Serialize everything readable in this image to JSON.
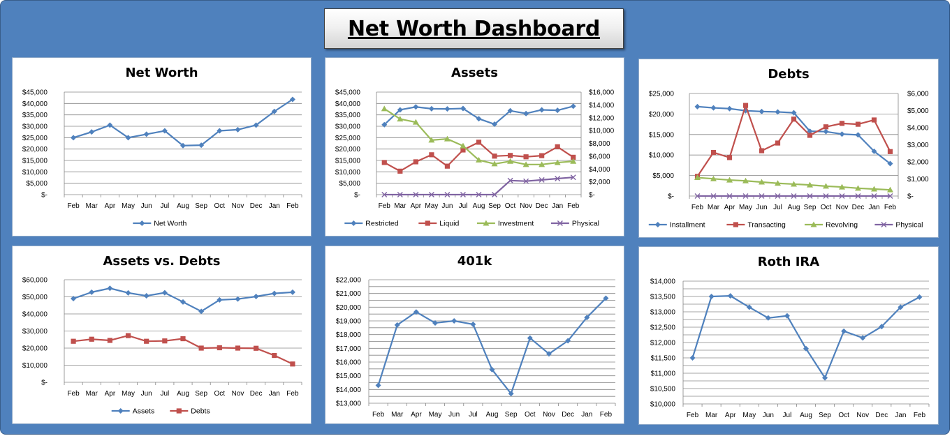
{
  "dashboard": {
    "title": "Net Worth Dashboard"
  },
  "colors": {
    "blue": "#4f81bd",
    "red": "#c0504d",
    "green": "#9bbb59",
    "purple": "#8064a2",
    "grid": "#868686",
    "background": "#4f81bd"
  },
  "chart_data": [
    {
      "id": "net-worth",
      "type": "line",
      "title": "Net Worth",
      "categories": [
        "Feb",
        "Mar",
        "Apr",
        "May",
        "Jun",
        "Jul",
        "Aug",
        "Sep",
        "Oct",
        "Nov",
        "Dec",
        "Jan",
        "Feb"
      ],
      "ylim": [
        0,
        45000
      ],
      "ystep": 5000,
      "y_tick_labels": [
        "$-",
        "$5,000",
        "$10,000",
        "$15,000",
        "$20,000",
        "$25,000",
        "$30,000",
        "$35,000",
        "$40,000",
        "$45,000"
      ],
      "grid": true,
      "legend_position": "bottom",
      "series": [
        {
          "name": "Net Worth",
          "color": "#4f81bd",
          "marker": "diamond",
          "axis": "left",
          "values": [
            25000,
            27500,
            30500,
            25000,
            26500,
            28000,
            21500,
            21700,
            28000,
            28500,
            30500,
            36500,
            41800
          ]
        }
      ]
    },
    {
      "id": "assets",
      "type": "line",
      "title": "Assets",
      "categories": [
        "Feb",
        "Mar",
        "Apr",
        "May",
        "Jun",
        "Jul",
        "Aug",
        "Sep",
        "Oct",
        "Nov",
        "Dec",
        "Jan",
        "Feb"
      ],
      "ylim": [
        0,
        45000
      ],
      "ystep": 5000,
      "y_tick_labels": [
        "$-",
        "$5,000",
        "$10,000",
        "$15,000",
        "$20,000",
        "$25,000",
        "$30,000",
        "$35,000",
        "$40,000",
        "$45,000"
      ],
      "y2lim": [
        0,
        16000
      ],
      "y2step": 2000,
      "y2_tick_labels": [
        "$-",
        "$2,000",
        "$4,000",
        "$6,000",
        "$8,000",
        "$10,000",
        "$12,000",
        "$14,000",
        "$16,000"
      ],
      "grid": true,
      "legend_position": "bottom",
      "series": [
        {
          "name": "Restricted",
          "color": "#4f81bd",
          "marker": "diamond",
          "axis": "left",
          "values": [
            30700,
            37200,
            38500,
            37700,
            37600,
            37800,
            33300,
            30900,
            36800,
            35600,
            37200,
            37000,
            38800
          ]
        },
        {
          "name": "Liquid",
          "color": "#c0504d",
          "marker": "square",
          "axis": "left",
          "values": [
            14100,
            10300,
            14400,
            17500,
            12500,
            19600,
            23000,
            16900,
            17200,
            16600,
            17100,
            21000,
            16400
          ]
        },
        {
          "name": "Investment",
          "color": "#9bbb59",
          "marker": "triangle",
          "axis": "right",
          "values": [
            13400,
            11800,
            11300,
            8500,
            8700,
            7600,
            5400,
            4800,
            5200,
            4700,
            4700,
            5000,
            5200
          ]
        },
        {
          "name": "Physical",
          "color": "#8064a2",
          "marker": "x",
          "axis": "right",
          "values": [
            0,
            0,
            0,
            0,
            0,
            0,
            0,
            0,
            2200,
            2100,
            2300,
            2500,
            2700
          ]
        }
      ]
    },
    {
      "id": "debts",
      "type": "line",
      "title": "Debts",
      "categories": [
        "Feb",
        "Mar",
        "Apr",
        "May",
        "Jun",
        "Jul",
        "Aug",
        "Sep",
        "Oct",
        "Nov",
        "Dec",
        "Jan",
        "Feb"
      ],
      "ylim": [
        0,
        25000
      ],
      "ystep": 5000,
      "y_tick_labels": [
        "$-",
        "$5,000",
        "$10,000",
        "$15,000",
        "$20,000",
        "$25,000"
      ],
      "y2lim": [
        0,
        6000
      ],
      "y2step": 1000,
      "y2_tick_labels": [
        "$-",
        "$1,000",
        "$2,000",
        "$3,000",
        "$4,000",
        "$5,000",
        "$6,000"
      ],
      "grid": true,
      "legend_position": "bottom",
      "series": [
        {
          "name": "Installment",
          "color": "#4f81bd",
          "marker": "diamond",
          "axis": "left",
          "values": [
            21800,
            21500,
            21300,
            20800,
            20600,
            20500,
            20300,
            15800,
            15700,
            15100,
            14900,
            10900,
            7900
          ]
        },
        {
          "name": "Transacting",
          "color": "#c0504d",
          "marker": "square",
          "axis": "right",
          "values": [
            1150,
            2550,
            2250,
            5300,
            2650,
            3100,
            4500,
            3550,
            4050,
            4250,
            4200,
            4450,
            2600
          ]
        },
        {
          "name": "Revolving",
          "color": "#9bbb59",
          "marker": "triangle",
          "axis": "left",
          "values": [
            4500,
            4200,
            3900,
            3700,
            3400,
            3100,
            2900,
            2700,
            2400,
            2200,
            1900,
            1700,
            1500
          ]
        },
        {
          "name": "Physical",
          "color": "#8064a2",
          "marker": "x",
          "axis": "left",
          "values": [
            0,
            0,
            0,
            0,
            0,
            0,
            0,
            0,
            0,
            0,
            0,
            0,
            0
          ]
        }
      ]
    },
    {
      "id": "assets-vs-debts",
      "type": "line",
      "title": "Assets vs. Debts",
      "categories": [
        "Feb",
        "Mar",
        "Apr",
        "May",
        "Jun",
        "Jul",
        "Aug",
        "Sep",
        "Oct",
        "Nov",
        "Dec",
        "Jan",
        "Feb"
      ],
      "ylim": [
        0,
        60000
      ],
      "ystep": 10000,
      "y_tick_labels": [
        "$-",
        "$10,000",
        "$20,000",
        "$30,000",
        "$40,000",
        "$50,000",
        "$60,000"
      ],
      "grid": true,
      "legend_position": "bottom",
      "series": [
        {
          "name": "Assets",
          "color": "#4f81bd",
          "marker": "diamond",
          "axis": "left",
          "values": [
            49000,
            52700,
            55000,
            52300,
            50600,
            52400,
            47000,
            41500,
            48200,
            48700,
            50200,
            52000,
            52700
          ]
        },
        {
          "name": "Debts",
          "color": "#c0504d",
          "marker": "square",
          "axis": "left",
          "values": [
            24000,
            25200,
            24500,
            27300,
            24000,
            24200,
            25500,
            20000,
            20200,
            20000,
            19900,
            15700,
            10700
          ]
        }
      ]
    },
    {
      "id": "401k",
      "type": "line",
      "title": "401k",
      "categories": [
        "Feb",
        "Mar",
        "Apr",
        "May",
        "Jun",
        "Jul",
        "Aug",
        "Sep",
        "Oct",
        "Nov",
        "Dec",
        "Jan",
        "Feb"
      ],
      "ylim": [
        13000,
        22000
      ],
      "ystep": 500,
      "y_tick_labels": [
        "$13,000",
        "$14,000",
        "$15,000",
        "$16,000",
        "$17,000",
        "$18,000",
        "$19,000",
        "$20,000",
        "$21,000",
        "$22,000"
      ],
      "grid": true,
      "legend_position": "none",
      "series": [
        {
          "color": "#4f81bd",
          "marker": "diamond",
          "axis": "left",
          "values": [
            14300,
            18700,
            19650,
            18850,
            19000,
            18750,
            15450,
            13700,
            17750,
            16600,
            17550,
            19250,
            20650
          ]
        }
      ]
    },
    {
      "id": "roth-ira",
      "type": "line",
      "title": "Roth IRA",
      "categories": [
        "Feb",
        "Mar",
        "Apr",
        "May",
        "Jun",
        "Jul",
        "Aug",
        "Sep",
        "Oct",
        "Nov",
        "Dec",
        "Jan",
        "Feb"
      ],
      "ylim": [
        10000,
        14000
      ],
      "ystep": 250,
      "y_tick_labels": [
        "$10,000",
        "$10,500",
        "$11,000",
        "$11,500",
        "$12,000",
        "$12,500",
        "$13,000",
        "$13,500",
        "$14,000"
      ],
      "grid": true,
      "legend_position": "none",
      "series": [
        {
          "color": "#4f81bd",
          "marker": "diamond",
          "axis": "left",
          "values": [
            11500,
            13500,
            13520,
            13150,
            12800,
            12870,
            11800,
            10850,
            12370,
            12150,
            12520,
            13150,
            13480
          ]
        }
      ]
    }
  ]
}
